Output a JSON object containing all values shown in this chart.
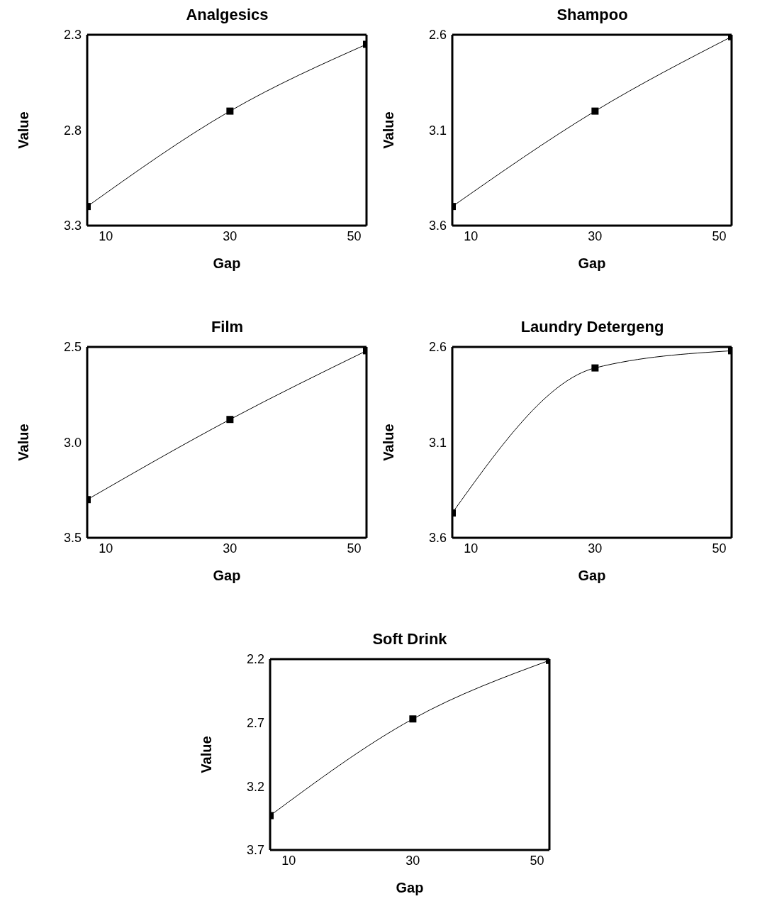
{
  "chart_data": [
    {
      "type": "line",
      "title": "Analgesics",
      "xlabel": "Gap",
      "ylabel": "Value",
      "x": [
        7,
        30,
        52
      ],
      "values": [
        3.2,
        2.7,
        2.35
      ],
      "color": "#000000",
      "xlim": [
        7,
        52
      ],
      "xticks": [
        10,
        30,
        50
      ],
      "ylim": [
        3.3,
        2.3
      ],
      "yticks": [
        2.3,
        2.8,
        3.3
      ],
      "marker": "square",
      "line_style": "solid",
      "grid": false,
      "legend": false
    },
    {
      "type": "line",
      "title": "Shampoo",
      "xlabel": "Gap",
      "ylabel": "Value",
      "x": [
        7,
        30,
        52
      ],
      "values": [
        3.5,
        3.0,
        2.61
      ],
      "color": "#000000",
      "xlim": [
        7,
        52
      ],
      "xticks": [
        10,
        30,
        50
      ],
      "ylim": [
        3.6,
        2.6
      ],
      "yticks": [
        2.6,
        3.1,
        3.6
      ],
      "marker": "square",
      "line_style": "solid",
      "grid": false,
      "legend": false
    },
    {
      "type": "line",
      "title": "Film",
      "xlabel": "Gap",
      "ylabel": "Value",
      "x": [
        7,
        30,
        52
      ],
      "values": [
        3.3,
        2.88,
        2.52
      ],
      "color": "#000000",
      "xlim": [
        7,
        52
      ],
      "xticks": [
        10,
        30,
        50
      ],
      "ylim": [
        3.5,
        2.5
      ],
      "yticks": [
        2.5,
        {
          "value": 3,
          "label": "3.0"
        },
        3.5
      ],
      "marker": "square",
      "line_style": "solid",
      "grid": false,
      "legend": false
    },
    {
      "type": "line",
      "title": "Laundry Detergeng",
      "xlabel": "Gap",
      "ylabel": "Value",
      "x": [
        7,
        30,
        52
      ],
      "values": [
        3.47,
        2.71,
        2.62
      ],
      "color": "#000000",
      "xlim": [
        7,
        52
      ],
      "xticks": [
        10,
        30,
        50
      ],
      "ylim": [
        3.6,
        2.6
      ],
      "yticks": [
        2.6,
        3.1,
        3.6
      ],
      "marker": "square",
      "line_style": "solid",
      "grid": false,
      "legend": false
    },
    {
      "type": "line",
      "title": "Soft Drink",
      "xlabel": "Gap",
      "ylabel": "Value",
      "x": [
        7,
        30,
        52
      ],
      "values": [
        3.43,
        2.67,
        2.21
      ],
      "color": "#000000",
      "xlim": [
        7,
        52
      ],
      "xticks": [
        10,
        30,
        50
      ],
      "ylim": [
        3.7,
        2.2
      ],
      "yticks": [
        2.2,
        2.7,
        3.2,
        3.7
      ],
      "marker": "square",
      "line_style": "solid",
      "grid": false,
      "legend": false
    }
  ]
}
